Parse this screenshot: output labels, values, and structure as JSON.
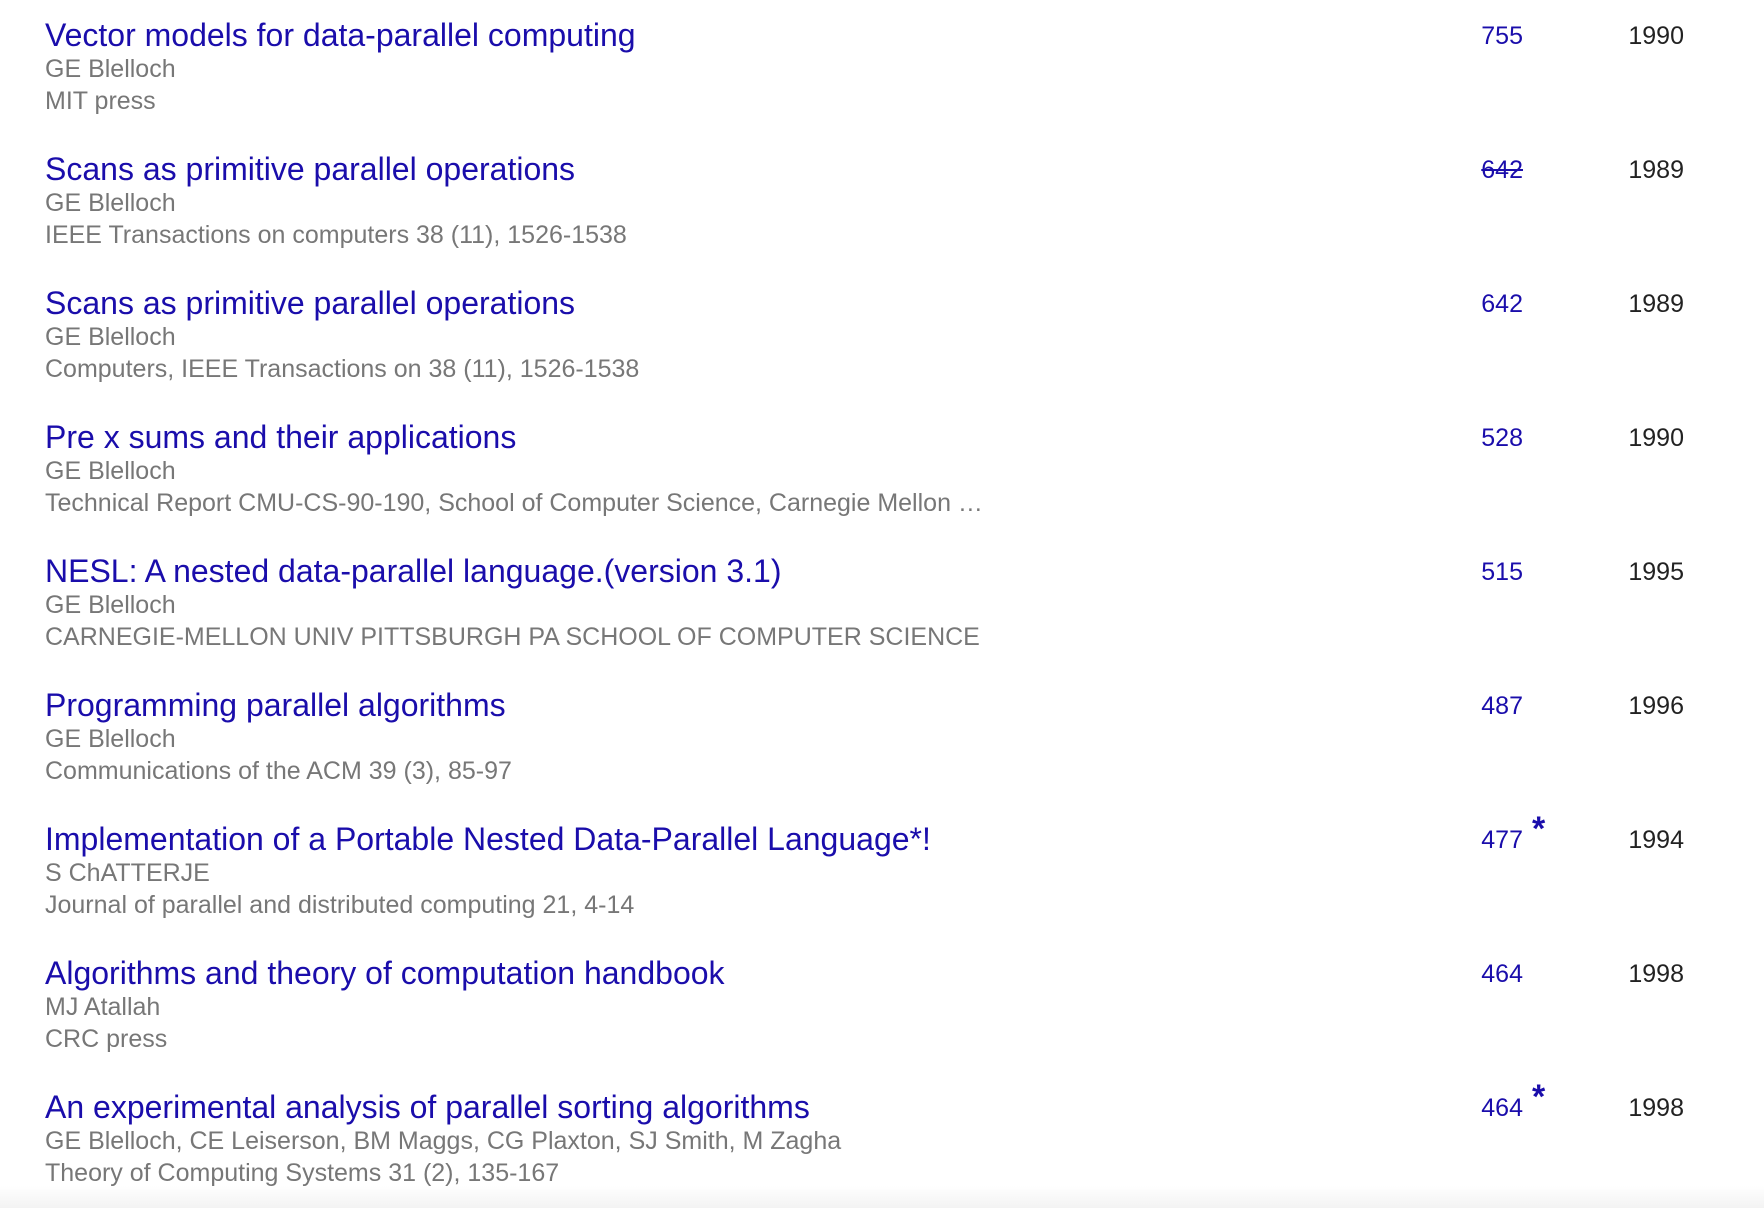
{
  "publications": [
    {
      "title": "Vector models for data-parallel computing",
      "authors": "GE Blelloch",
      "venue": "MIT press",
      "cited_by": "755",
      "cited_by_struck": false,
      "star": "",
      "year": "1990"
    },
    {
      "title": "Scans as primitive parallel operations",
      "authors": "GE Blelloch",
      "venue": "IEEE Transactions on computers 38 (11), 1526-1538",
      "cited_by": "642",
      "cited_by_struck": true,
      "star": "",
      "year": "1989"
    },
    {
      "title": "Scans as primitive parallel operations",
      "authors": "GE Blelloch",
      "venue": "Computers, IEEE Transactions on 38 (11), 1526-1538",
      "cited_by": "642",
      "cited_by_struck": false,
      "star": "",
      "year": "1989"
    },
    {
      "title": "Pre x sums and their applications",
      "authors": "GE Blelloch",
      "venue": "Technical Report CMU-CS-90-190, School of Computer Science, Carnegie Mellon …",
      "cited_by": "528",
      "cited_by_struck": false,
      "star": "",
      "year": "1990"
    },
    {
      "title": "NESL: A nested data-parallel language.(version 3.1)",
      "authors": "GE Blelloch",
      "venue": "CARNEGIE-MELLON UNIV PITTSBURGH PA SCHOOL OF COMPUTER SCIENCE",
      "cited_by": "515",
      "cited_by_struck": false,
      "star": "",
      "year": "1995"
    },
    {
      "title": "Programming parallel algorithms",
      "authors": "GE Blelloch",
      "venue": "Communications of the ACM 39 (3), 85-97",
      "cited_by": "487",
      "cited_by_struck": false,
      "star": "",
      "year": "1996"
    },
    {
      "title": "Implementation of a Portable Nested Data-Parallel Language*!",
      "authors": "S ChATTERJE",
      "venue": "Journal of parallel and distributed computing 21, 4-14",
      "cited_by": "477",
      "cited_by_struck": false,
      "star": "*",
      "year": "1994"
    },
    {
      "title": "Algorithms and theory of computation handbook",
      "authors": "MJ Atallah",
      "venue": "CRC press",
      "cited_by": "464",
      "cited_by_struck": false,
      "star": "",
      "year": "1998"
    },
    {
      "title": "An experimental analysis of parallel sorting algorithms",
      "authors": "GE Blelloch, CE Leiserson, BM Maggs, CG Plaxton, SJ Smith, M Zagha",
      "venue": "Theory of Computing Systems 31 (2), 135-167",
      "cited_by": "464",
      "cited_by_struck": false,
      "star": "*",
      "year": "1998"
    }
  ],
  "colors": {
    "link": "#1a0dab",
    "meta_text": "#777777",
    "year_text": "#222222"
  }
}
